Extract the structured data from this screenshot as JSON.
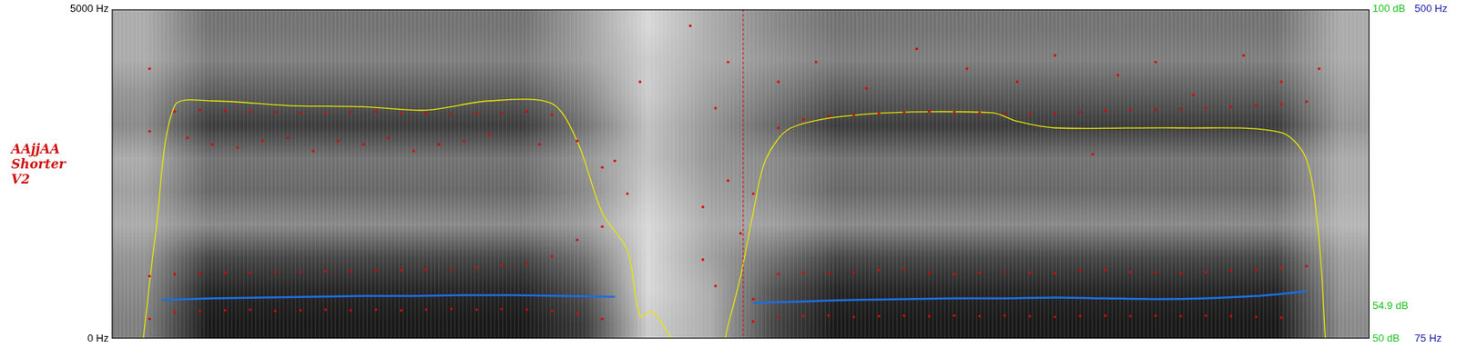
{
  "chart_data": {
    "type": "spectrogram",
    "title": "AAjjAA Shorter V2",
    "xlim": [
      0,
      1
    ],
    "ylim": [
      0,
      5000
    ],
    "yticks": [
      {
        "value": 0,
        "label": "0 Hz"
      },
      {
        "value": 5000,
        "label": "5000 Hz"
      }
    ],
    "y2lim": [
      75,
      500
    ],
    "y2ticks": [
      {
        "value": 75,
        "label": "75 Hz"
      },
      {
        "value": 500,
        "label": "500 Hz"
      }
    ],
    "y3lim": [
      50,
      100
    ],
    "y3ticks": [
      {
        "value": 50,
        "label": "50 dB"
      },
      {
        "value": 54.9,
        "label": "54.9 dB"
      },
      {
        "value": 100,
        "label": "100 dB"
      }
    ],
    "grid": false,
    "cursor": 0.502,
    "spectrogram": {
      "time_bins": [
        0,
        0.05,
        0.1,
        0.15,
        0.2,
        0.25,
        0.3,
        0.35,
        0.4,
        0.45,
        0.5,
        0.55,
        0.6,
        0.65,
        0.7,
        0.75,
        0.8,
        0.85,
        0.9,
        0.95,
        1
      ],
      "freq_bins": [
        0,
        500,
        1000,
        1500,
        2000,
        2500,
        3000,
        3500,
        4000,
        4500,
        5000
      ],
      "cells": [
        [
          0.5,
          0.95,
          0.95,
          0.95,
          0.95,
          0.95,
          0.95,
          0.8,
          0.15,
          0.3,
          0.75,
          0.95,
          0.95,
          0.95,
          0.95,
          0.95,
          0.95,
          0.95,
          0.95,
          0.45
        ],
        [
          0.45,
          0.9,
          0.9,
          0.9,
          0.9,
          0.9,
          0.9,
          0.7,
          0.1,
          0.3,
          0.7,
          0.9,
          0.9,
          0.9,
          0.9,
          0.9,
          0.9,
          0.9,
          0.9,
          0.4
        ],
        [
          0.4,
          0.75,
          0.75,
          0.75,
          0.75,
          0.75,
          0.75,
          0.55,
          0.1,
          0.35,
          0.55,
          0.75,
          0.75,
          0.75,
          0.75,
          0.75,
          0.75,
          0.75,
          0.75,
          0.35
        ],
        [
          0.3,
          0.45,
          0.45,
          0.45,
          0.45,
          0.45,
          0.45,
          0.35,
          0.1,
          0.3,
          0.35,
          0.45,
          0.45,
          0.45,
          0.45,
          0.45,
          0.45,
          0.45,
          0.45,
          0.25
        ],
        [
          0.35,
          0.6,
          0.6,
          0.6,
          0.6,
          0.6,
          0.6,
          0.45,
          0.15,
          0.35,
          0.45,
          0.6,
          0.6,
          0.6,
          0.6,
          0.6,
          0.6,
          0.6,
          0.6,
          0.3
        ],
        [
          0.3,
          0.55,
          0.55,
          0.55,
          0.55,
          0.55,
          0.55,
          0.4,
          0.2,
          0.4,
          0.45,
          0.55,
          0.55,
          0.55,
          0.55,
          0.55,
          0.55,
          0.55,
          0.55,
          0.3
        ],
        [
          0.45,
          0.8,
          0.8,
          0.8,
          0.8,
          0.8,
          0.8,
          0.55,
          0.2,
          0.4,
          0.6,
          0.8,
          0.8,
          0.8,
          0.8,
          0.8,
          0.8,
          0.8,
          0.8,
          0.4
        ],
        [
          0.4,
          0.65,
          0.65,
          0.65,
          0.65,
          0.65,
          0.65,
          0.45,
          0.15,
          0.35,
          0.5,
          0.65,
          0.65,
          0.65,
          0.65,
          0.65,
          0.65,
          0.65,
          0.65,
          0.35
        ],
        [
          0.3,
          0.5,
          0.5,
          0.5,
          0.5,
          0.5,
          0.5,
          0.35,
          0.15,
          0.3,
          0.4,
          0.5,
          0.5,
          0.5,
          0.5,
          0.5,
          0.5,
          0.5,
          0.5,
          0.3
        ],
        [
          0.3,
          0.55,
          0.55,
          0.55,
          0.55,
          0.55,
          0.55,
          0.35,
          0.1,
          0.3,
          0.45,
          0.55,
          0.55,
          0.55,
          0.55,
          0.55,
          0.55,
          0.55,
          0.55,
          0.3
        ]
      ]
    },
    "series": [
      {
        "type": "scatter",
        "color": "#e00000",
        "marker": "circle",
        "x": [
          0.03,
          0.05,
          0.07,
          0.09,
          0.11,
          0.13,
          0.15,
          0.17,
          0.19,
          0.21,
          0.23,
          0.25,
          0.27,
          0.29,
          0.31,
          0.33,
          0.35,
          0.37,
          0.39,
          0.51,
          0.53,
          0.55,
          0.57,
          0.59,
          0.61,
          0.63,
          0.65,
          0.67,
          0.69,
          0.71,
          0.73,
          0.75,
          0.77,
          0.79,
          0.81,
          0.83,
          0.85,
          0.87,
          0.89,
          0.91,
          0.93
        ],
        "values": [
          300,
          400,
          420,
          430,
          440,
          420,
          430,
          440,
          430,
          440,
          430,
          440,
          450,
          440,
          450,
          440,
          420,
          380,
          300,
          260,
          330,
          340,
          350,
          330,
          340,
          350,
          340,
          350,
          340,
          350,
          340,
          330,
          340,
          350,
          340,
          350,
          340,
          350,
          340,
          330,
          320
        ]
      },
      {
        "type": "scatter",
        "color": "#e00000",
        "marker": "circle",
        "x": [
          0.03,
          0.05,
          0.07,
          0.09,
          0.11,
          0.13,
          0.15,
          0.17,
          0.19,
          0.21,
          0.23,
          0.25,
          0.27,
          0.29,
          0.31,
          0.33,
          0.35,
          0.37,
          0.39,
          0.51,
          0.53,
          0.55,
          0.57,
          0.59,
          0.61,
          0.63,
          0.65,
          0.67,
          0.69,
          0.71,
          0.73,
          0.75,
          0.77,
          0.79,
          0.81,
          0.83,
          0.85,
          0.87,
          0.89,
          0.91,
          0.93,
          0.95
        ],
        "values": [
          950,
          980,
          990,
          1000,
          1000,
          1010,
          1010,
          1020,
          1020,
          1030,
          1040,
          1050,
          1060,
          1080,
          1110,
          1150,
          1250,
          1500,
          1700,
          600,
          980,
          1000,
          990,
          1010,
          1040,
          1060,
          1000,
          980,
          1000,
          1010,
          1000,
          990,
          1030,
          1040,
          1010,
          1000,
          990,
          1010,
          1030,
          1050,
          1080,
          1100
        ]
      },
      {
        "type": "scatter",
        "color": "#e00000",
        "marker": "circle",
        "x": [
          0.03,
          0.05,
          0.07,
          0.09,
          0.11,
          0.13,
          0.15,
          0.17,
          0.19,
          0.21,
          0.23,
          0.25,
          0.27,
          0.29,
          0.31,
          0.33,
          0.35,
          0.37,
          0.39,
          0.41,
          0.51,
          0.53,
          0.55,
          0.57,
          0.59,
          0.61,
          0.63,
          0.65,
          0.67,
          0.69,
          0.71,
          0.73,
          0.75,
          0.77,
          0.79,
          0.81,
          0.83,
          0.85,
          0.87,
          0.89,
          0.91,
          0.93,
          0.95
        ],
        "values": [
          3150,
          3450,
          3470,
          3460,
          3450,
          3440,
          3430,
          3430,
          3440,
          3450,
          3430,
          3420,
          3410,
          3420,
          3430,
          3450,
          3400,
          3000,
          2600,
          2200,
          2200,
          3200,
          3330,
          3380,
          3400,
          3420,
          3440,
          3450,
          3440,
          3430,
          3420,
          3410,
          3420,
          3440,
          3460,
          3470,
          3480,
          3490,
          3500,
          3520,
          3540,
          3560,
          3600
        ]
      },
      {
        "type": "scatter",
        "color": "#e00000",
        "marker": "circle",
        "x": [
          0.03,
          0.06,
          0.08,
          0.1,
          0.12,
          0.14,
          0.16,
          0.18,
          0.2,
          0.22,
          0.24,
          0.26,
          0.28,
          0.3,
          0.34,
          0.4,
          0.42,
          0.46,
          0.47,
          0.47,
          0.48,
          0.48,
          0.49,
          0.49,
          0.5,
          0.53,
          0.56,
          0.6,
          0.64,
          0.68,
          0.72,
          0.75,
          0.78,
          0.8,
          0.83,
          0.86,
          0.9,
          0.93,
          0.96
        ],
        "values": [
          4100,
          3050,
          2950,
          2900,
          3000,
          3050,
          2850,
          3000,
          2950,
          3050,
          2850,
          2950,
          3000,
          3100,
          2950,
          2700,
          3900,
          4750,
          2000,
          1200,
          3500,
          800,
          2400,
          4200,
          1600,
          3900,
          4200,
          3800,
          4400,
          4100,
          3900,
          4300,
          2800,
          4000,
          4200,
          3700,
          4300,
          3900,
          4100
        ]
      },
      {
        "type": "line",
        "color": "#1c6fe0",
        "line_style": "solid",
        "axis": "y2",
        "x": [
          0.04,
          0.08,
          0.12,
          0.16,
          0.2,
          0.24,
          0.28,
          0.32,
          0.36,
          0.4,
          0.45,
          0.51,
          0.55,
          0.59,
          0.63,
          0.67,
          0.71,
          0.75,
          0.79,
          0.83,
          0.87,
          0.91,
          0.95
        ],
        "values": [
          125,
          127,
          128,
          129,
          130,
          130,
          131,
          131,
          130,
          129,
          null,
          121,
          123,
          125,
          126,
          127,
          127,
          128,
          127,
          126,
          127,
          130,
          136
        ]
      },
      {
        "type": "line",
        "color": "#e8e800",
        "line_style": "solid",
        "axis": "y3",
        "x": [
          0.025,
          0.035,
          0.05,
          0.08,
          0.14,
          0.2,
          0.25,
          0.3,
          0.35,
          0.37,
          0.39,
          0.41,
          0.42,
          0.43,
          0.46,
          0.48,
          0.49,
          0.5,
          0.51,
          0.52,
          0.54,
          0.6,
          0.7,
          0.72,
          0.75,
          0.85,
          0.93,
          0.95,
          0.96,
          0.965
        ],
        "values": [
          50,
          66.3,
          85.4,
          86.1,
          85.4,
          85.2,
          84.7,
          86.1,
          85.7,
          80,
          69.1,
          63.4,
          53.4,
          54.1,
          46,
          45,
          52,
          59.5,
          69.1,
          77.2,
          82,
          84.1,
          84.3,
          83,
          82,
          82,
          81.3,
          77.2,
          65,
          50
        ]
      }
    ]
  }
}
